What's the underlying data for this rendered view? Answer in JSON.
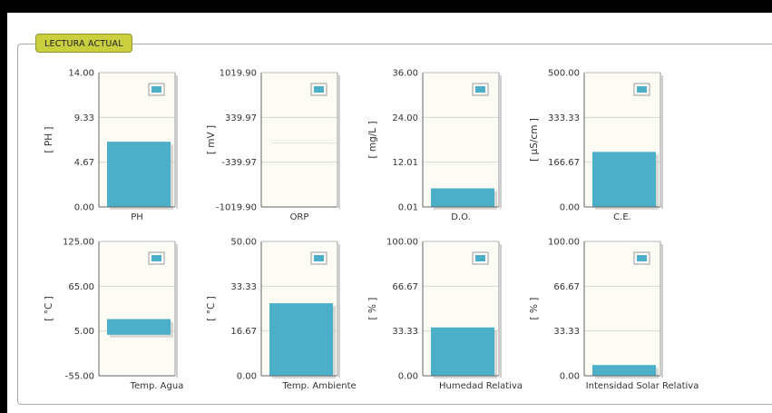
{
  "panel": {
    "title": "LECTURA ACTUAL"
  },
  "colors": {
    "bar": "#4bb0c7",
    "plot_bg": "#fcfbf4",
    "grid": "#d9d9d9",
    "legend_box": "#4bb0c7"
  },
  "chart_data": [
    {
      "type": "bar",
      "xlabel": "PH",
      "ylabel": "[ PH ]",
      "yticks": [
        "14.00",
        "9.33",
        "4.67",
        "0.00"
      ],
      "ylim": [
        0,
        14
      ],
      "value": 6.8,
      "legend": "icon-only"
    },
    {
      "type": "bar",
      "xlabel": "ORP",
      "ylabel": "[ mV ]",
      "yticks": [
        "1019.90",
        "339.97",
        "-339.97",
        "-1019.90"
      ],
      "ylim": [
        -1019.9,
        1019.9
      ],
      "value": 0,
      "legend": "icon-only"
    },
    {
      "type": "bar",
      "xlabel": "D.O.",
      "ylabel": "[ mg/L ]",
      "yticks": [
        "36.00",
        "24.00",
        "12.01",
        "0.01"
      ],
      "ylim": [
        0.01,
        36
      ],
      "value": 5,
      "legend": "icon-only"
    },
    {
      "type": "bar",
      "xlabel": "C.E.",
      "ylabel": "[ µS/cm ]",
      "yticks": [
        "500.00",
        "333.33",
        "166.67",
        "0.00"
      ],
      "ylim": [
        0,
        500
      ],
      "value": 205,
      "legend": "icon-only"
    },
    {
      "type": "bar",
      "xlabel": "Temp. Agua",
      "ylabel": "[ °C ]",
      "yticks": [
        "125.00",
        "65.00",
        "5.00",
        "-55.00"
      ],
      "ylim": [
        -55,
        125
      ],
      "value": 21,
      "legend": "icon-only"
    },
    {
      "type": "bar",
      "xlabel": "Temp. Ambiente",
      "ylabel": "[ °C ]",
      "yticks": [
        "50.00",
        "33.33",
        "16.67",
        "0.00"
      ],
      "ylim": [
        0,
        50
      ],
      "value": 27,
      "legend": "icon-only"
    },
    {
      "type": "bar",
      "xlabel": "Humedad Relativa",
      "ylabel": "[ % ]",
      "yticks": [
        "100.00",
        "66.67",
        "33.33",
        "0.00"
      ],
      "ylim": [
        0,
        100
      ],
      "value": 36,
      "legend": "icon-only"
    },
    {
      "type": "bar",
      "xlabel": "Intensidad Solar Relativa",
      "ylabel": "[ % ]",
      "yticks": [
        "100.00",
        "66.67",
        "33.33",
        "0.00"
      ],
      "ylim": [
        0,
        100
      ],
      "value": 8,
      "legend": "icon-only"
    }
  ]
}
